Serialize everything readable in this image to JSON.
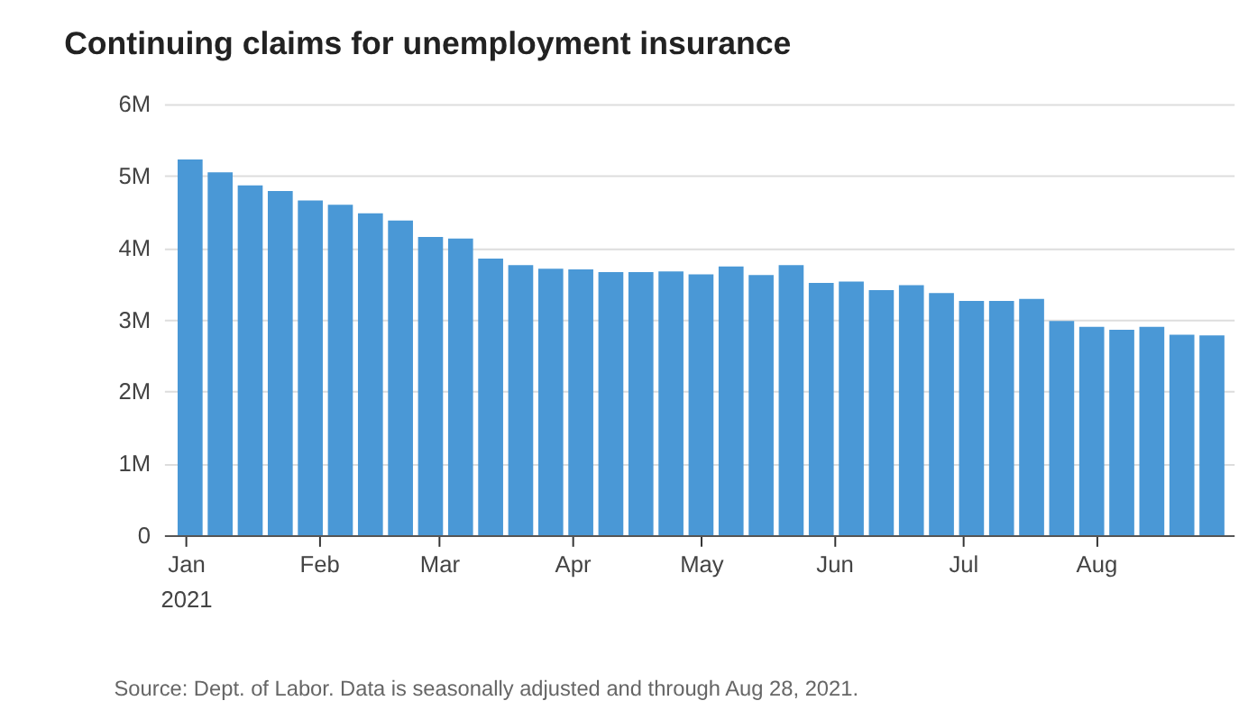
{
  "chart_data": {
    "type": "bar",
    "title": "Continuing claims for unemployment insurance",
    "x": [
      "2021-01-02",
      "2021-01-09",
      "2021-01-16",
      "2021-01-23",
      "2021-01-30",
      "2021-02-06",
      "2021-02-13",
      "2021-02-20",
      "2021-02-27",
      "2021-03-06",
      "2021-03-13",
      "2021-03-20",
      "2021-03-27",
      "2021-04-03",
      "2021-04-10",
      "2021-04-17",
      "2021-04-24",
      "2021-05-01",
      "2021-05-08",
      "2021-05-15",
      "2021-05-22",
      "2021-05-29",
      "2021-06-05",
      "2021-06-12",
      "2021-06-19",
      "2021-06-26",
      "2021-07-03",
      "2021-07-10",
      "2021-07-17",
      "2021-07-24",
      "2021-07-31",
      "2021-08-07",
      "2021-08-14",
      "2021-08-21",
      "2021-08-28"
    ],
    "values": [
      5230000,
      5050000,
      4870000,
      4790000,
      4660000,
      4600000,
      4480000,
      4380000,
      4150000,
      4130000,
      3850000,
      3760000,
      3710000,
      3700000,
      3660000,
      3660000,
      3670000,
      3630000,
      3740000,
      3620000,
      3760000,
      3510000,
      3530000,
      3410000,
      3480000,
      3370000,
      3260000,
      3260000,
      3290000,
      2980000,
      2900000,
      2860000,
      2900000,
      2790000,
      2780000
    ],
    "color": "#4a98d6",
    "xlim": [
      "2020-12-29",
      "2021-08-31"
    ],
    "xticks": [
      {
        "value": "2021-01-01",
        "label": "Jan 2021"
      },
      {
        "value": "2021-02-01",
        "label": "Feb"
      },
      {
        "value": "2021-03-01",
        "label": "Mar"
      },
      {
        "value": "2021-04-01",
        "label": "Apr"
      },
      {
        "value": "2021-05-01",
        "label": "May"
      },
      {
        "value": "2021-06-01",
        "label": "Jun"
      },
      {
        "value": "2021-07-01",
        "label": "Jul"
      },
      {
        "value": "2021-08-01",
        "label": "Aug"
      }
    ],
    "ylim": [
      0,
      6000000
    ],
    "yticks": [
      {
        "value": 0,
        "label": "0"
      },
      {
        "value": 1000000,
        "label": "1M"
      },
      {
        "value": 2000000,
        "label": "2M"
      },
      {
        "value": 3000000,
        "label": "3M"
      },
      {
        "value": 4000000,
        "label": "4M"
      },
      {
        "value": 5000000,
        "label": "5M"
      },
      {
        "value": 6000000,
        "label": "6M"
      }
    ],
    "grid": "y",
    "annotations": [
      "Source: Dept. of Labor. Data is seasonally adjusted and through Aug 28, 2021."
    ]
  }
}
